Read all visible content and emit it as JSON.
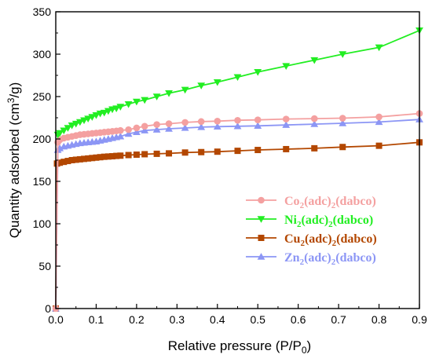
{
  "chart_data": {
    "type": "line",
    "xlabel_main": "Relative pressure (P/P",
    "xlabel_sub": "0",
    "xlabel_tail": ")",
    "ylabel_main": "Quantity adsorbed (cm",
    "ylabel_sup": "3",
    "ylabel_tail": "/g)",
    "xlim": [
      0.0,
      0.9
    ],
    "ylim": [
      0,
      350
    ],
    "xticks": [
      "0.0",
      "0.1",
      "0.2",
      "0.3",
      "0.4",
      "0.5",
      "0.6",
      "0.7",
      "0.8",
      "0.9"
    ],
    "yticks": [
      "0",
      "50",
      "100",
      "150",
      "200",
      "250",
      "300",
      "350"
    ],
    "legend_position": "center-right",
    "series": [
      {
        "metal": "Co",
        "sub1": "2",
        "mid": "(adc)",
        "sub2": "2",
        "tail": "(dabco)",
        "color": "#f4a0a0",
        "marker": "circle",
        "x": [
          0.0,
          0.005,
          0.01,
          0.02,
          0.03,
          0.04,
          0.05,
          0.06,
          0.07,
          0.08,
          0.09,
          0.1,
          0.11,
          0.12,
          0.13,
          0.14,
          0.15,
          0.16,
          0.18,
          0.2,
          0.22,
          0.25,
          0.28,
          0.32,
          0.36,
          0.4,
          0.45,
          0.5,
          0.57,
          0.64,
          0.71,
          0.8,
          0.9
        ],
        "y": [
          0,
          196,
          199,
          201,
          202,
          203,
          204,
          205,
          205.5,
          206,
          206.5,
          207,
          207.5,
          208,
          208.5,
          209,
          209.5,
          210,
          211,
          213,
          215,
          217,
          218,
          219.5,
          220.5,
          221,
          222,
          222.5,
          223.5,
          224,
          224.5,
          226,
          230
        ]
      },
      {
        "metal": "Ni",
        "sub1": "2",
        "mid": "(adc)",
        "sub2": "2",
        "tail": "(dabco)",
        "color": "#22ee22",
        "marker": "triangle-down",
        "x": [
          0.005,
          0.01,
          0.02,
          0.03,
          0.04,
          0.05,
          0.06,
          0.07,
          0.08,
          0.09,
          0.1,
          0.11,
          0.12,
          0.13,
          0.14,
          0.15,
          0.16,
          0.18,
          0.2,
          0.22,
          0.25,
          0.28,
          0.32,
          0.36,
          0.4,
          0.45,
          0.5,
          0.57,
          0.64,
          0.71,
          0.8,
          0.9
        ],
        "y": [
          205,
          207,
          210,
          213,
          216,
          218,
          220,
          222,
          224,
          226,
          228,
          230,
          231,
          233,
          235,
          236,
          238,
          241,
          244,
          246,
          250,
          254,
          258,
          263,
          267,
          273,
          279,
          286,
          293,
          300,
          308,
          328
        ]
      },
      {
        "metal": "Cu",
        "sub1": "2",
        "mid": "(adc)",
        "sub2": "2",
        "tail": "(dabco)",
        "color": "#b34700",
        "marker": "square",
        "x": [
          0.0,
          0.003,
          0.01,
          0.02,
          0.03,
          0.04,
          0.05,
          0.06,
          0.07,
          0.08,
          0.09,
          0.1,
          0.11,
          0.12,
          0.13,
          0.14,
          0.15,
          0.16,
          0.18,
          0.2,
          0.22,
          0.25,
          0.28,
          0.32,
          0.36,
          0.4,
          0.45,
          0.5,
          0.57,
          0.64,
          0.71,
          0.8,
          0.9
        ],
        "y": [
          0,
          171,
          172,
          173,
          174,
          175,
          175.5,
          176,
          176.5,
          177,
          177.5,
          178,
          178.5,
          179,
          179.3,
          179.6,
          180,
          180.3,
          181,
          181.5,
          182,
          182.5,
          183,
          184,
          184.5,
          185,
          186,
          187,
          188,
          189,
          190.5,
          192,
          196
        ]
      },
      {
        "metal": "Zn",
        "sub1": "2",
        "mid": "(adc)",
        "sub2": "2",
        "tail": "(dabco)",
        "color": "#8c96f5",
        "marker": "triangle-up",
        "x": [
          0.0,
          0.005,
          0.01,
          0.02,
          0.03,
          0.04,
          0.05,
          0.06,
          0.07,
          0.08,
          0.09,
          0.1,
          0.11,
          0.12,
          0.13,
          0.14,
          0.15,
          0.16,
          0.18,
          0.2,
          0.22,
          0.25,
          0.28,
          0.32,
          0.36,
          0.4,
          0.45,
          0.5,
          0.57,
          0.64,
          0.71,
          0.8,
          0.9
        ],
        "y": [
          0,
          187,
          189,
          191,
          192,
          193,
          194,
          195,
          195.5,
          196,
          196.5,
          197,
          198,
          199,
          200,
          201,
          202,
          203,
          206,
          208,
          210,
          211,
          212,
          213,
          214,
          214.5,
          215,
          215.5,
          216.5,
          217.5,
          218.5,
          220,
          223
        ]
      }
    ]
  }
}
